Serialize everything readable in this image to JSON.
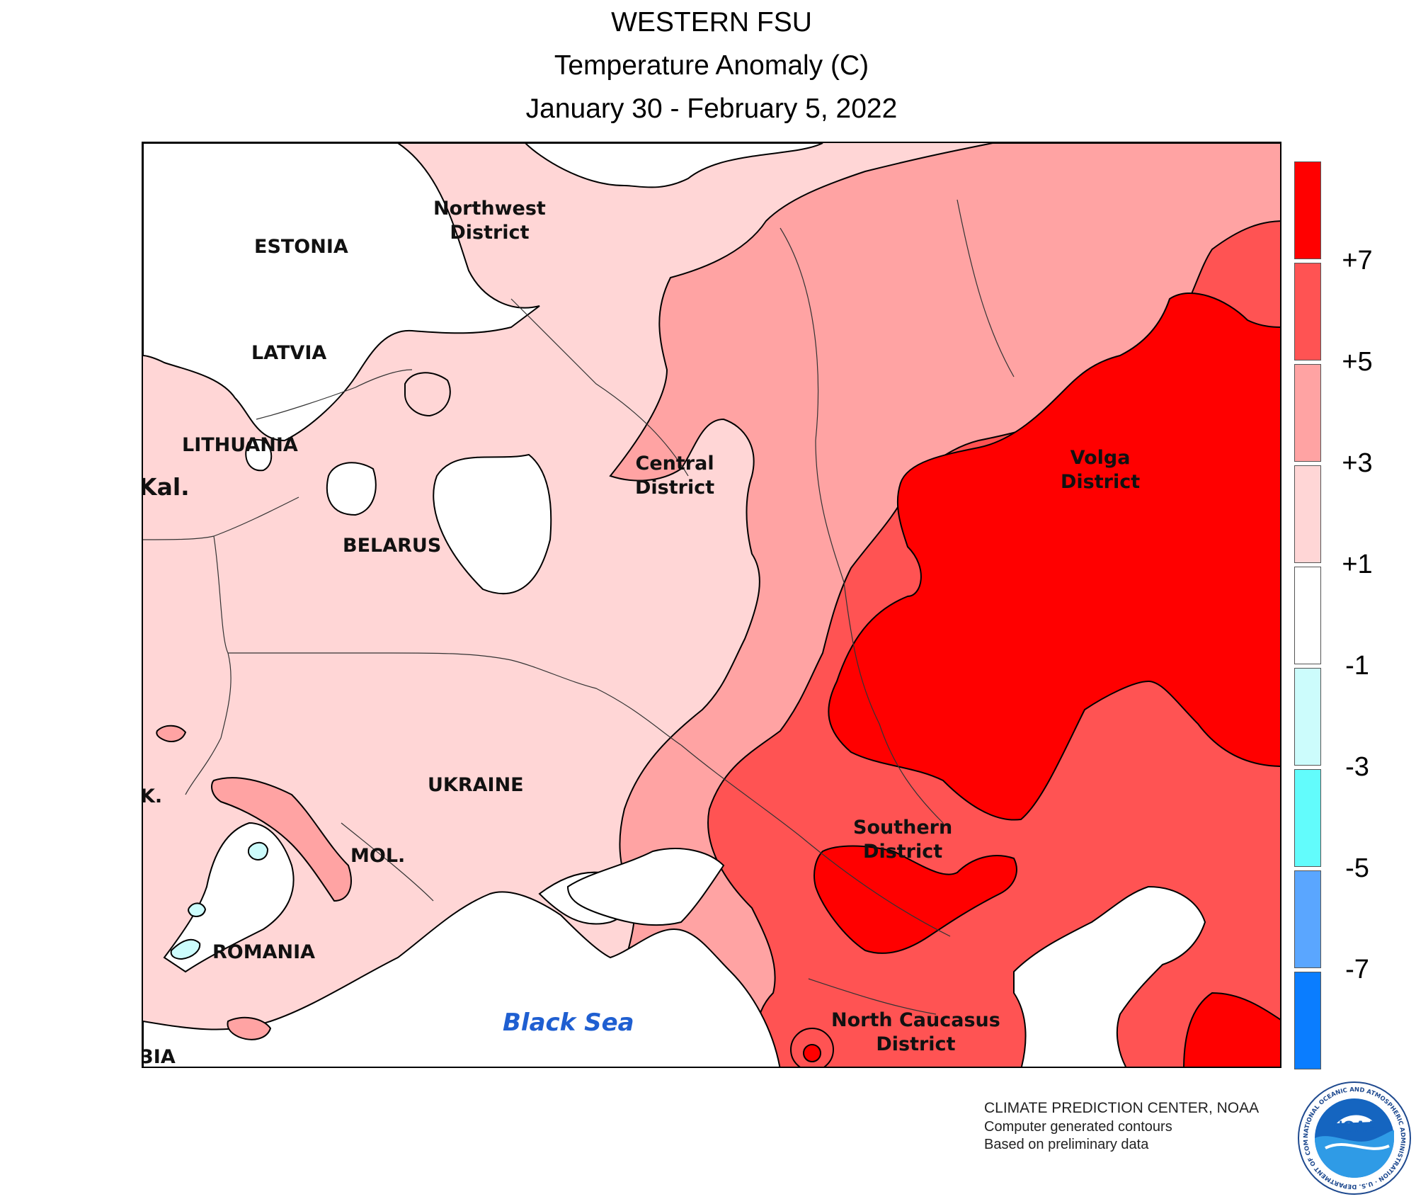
{
  "header": {
    "title": "WESTERN FSU",
    "subtitle": "Temperature Anomaly (C)",
    "period": "January 30 - February 5, 2022"
  },
  "map": {
    "labels": {
      "estonia": "ESTONIA",
      "latvia": "LATVIA",
      "lithuania": "LITHUANIA",
      "kaliningrad": "Kal.",
      "belarus": "BELARUS",
      "ukraine": "UKRAINE",
      "moldova": "MOL.",
      "romania": "ROMANIA",
      "slovakia_fragment": "K.",
      "serbia_fragment": "3IA",
      "northwest_1": "Northwest",
      "northwest_2": "District",
      "central_1": "Central",
      "central_2": "District",
      "volga_1": "Volga",
      "volga_2": "District",
      "southern_1": "Southern",
      "southern_2": "District",
      "ncaucasus_1": "North Caucasus",
      "ncaucasus_2": "District",
      "black_sea": "Black Sea"
    },
    "shading_colors": {
      "above_7": "#ff0000",
      "5_to_7": "#ff5353",
      "3_to_5": "#ffa3a3",
      "1_to_3": "#ffd6d6",
      "neutral": "#ffffff",
      "minus1_to_minus3": "#ccfcfc",
      "minus3_to_minus5": "#62fcfc",
      "minus5_to_minus7": "#5aa6ff",
      "below_minus7": "#0a7dff"
    }
  },
  "legend": {
    "colors": [
      "#ff0000",
      "#ff5353",
      "#ffa3a3",
      "#ffd6d6",
      "#ffffff",
      "#ccfcfc",
      "#62fcfc",
      "#5aa6ff",
      "#0a7dff"
    ],
    "ticks": [
      "+7",
      "+5",
      "+3",
      "+1",
      "-1",
      "-3",
      "-5",
      "-7"
    ]
  },
  "footer": {
    "credit_line1": "CLIMATE PREDICTION CENTER, NOAA",
    "credit_line2": "Computer generated contours",
    "credit_line3": "Based on preliminary data",
    "logo_text": "NOAA",
    "logo_ring_text": "NATIONAL OCEANIC AND ATMOSPHERIC ADMINISTRATION · U.S. DEPARTMENT OF COMMERCE"
  }
}
